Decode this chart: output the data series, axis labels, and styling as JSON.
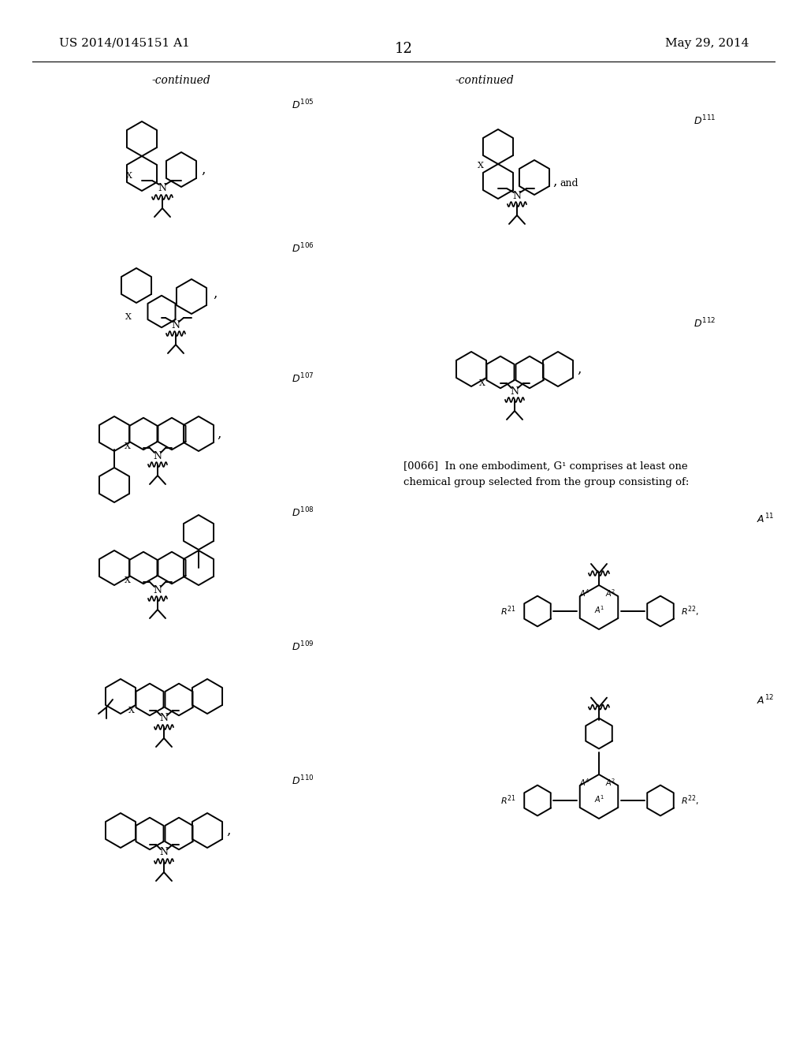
{
  "background_color": "#ffffff",
  "page_number": "12",
  "header_left": "US 2014/0145151 A1",
  "header_right": "May 29, 2014",
  "continued_left": "-continued",
  "continued_right": "-continued"
}
